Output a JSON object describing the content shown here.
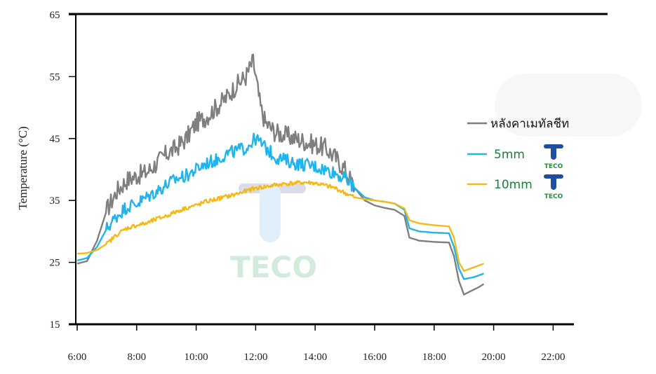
{
  "chart_data": {
    "type": "line",
    "title": "",
    "xlabel": "",
    "ylabel": "Temperature (°C)",
    "ylim": [
      15,
      65
    ],
    "yticks": [
      15,
      25,
      35,
      45,
      55,
      65
    ],
    "xlim": [
      "6:00",
      "23:00"
    ],
    "xticks": [
      "6:00",
      "8:00",
      "10:00",
      "12:00",
      "14:00",
      "16:00",
      "18:00",
      "20:00",
      "22:00"
    ],
    "legend_position": "right",
    "grid": false,
    "series": [
      {
        "name": "หลังคาเมทัลชีท",
        "color": "#7f7f7f",
        "points": [
          [
            "6:00",
            24.8
          ],
          [
            "6:20",
            25.2
          ],
          [
            "6:40",
            28.5
          ],
          [
            "7:00",
            33.5
          ],
          [
            "7:20",
            36.5
          ],
          [
            "7:40",
            38.3
          ],
          [
            "8:00",
            39.0
          ],
          [
            "8:20",
            39.5
          ],
          [
            "8:40",
            41.0
          ],
          [
            "9:00",
            42.5
          ],
          [
            "9:20",
            43.5
          ],
          [
            "9:40",
            45.0
          ],
          [
            "10:00",
            47.5
          ],
          [
            "10:20",
            48.5
          ],
          [
            "10:40",
            50.0
          ],
          [
            "11:00",
            51.5
          ],
          [
            "11:20",
            53.5
          ],
          [
            "11:40",
            55.0
          ],
          [
            "11:55",
            57.5
          ],
          [
            "12:10",
            50.0
          ],
          [
            "12:20",
            47.5
          ],
          [
            "12:40",
            46.0
          ],
          [
            "13:00",
            45.5
          ],
          [
            "13:20",
            45.0
          ],
          [
            "13:40",
            44.5
          ],
          [
            "14:00",
            44.0
          ],
          [
            "14:20",
            43.5
          ],
          [
            "14:40",
            42.0
          ],
          [
            "15:00",
            40.0
          ],
          [
            "15:20",
            37.0
          ],
          [
            "15:40",
            35.0
          ],
          [
            "16:00",
            34.2
          ],
          [
            "16:20",
            33.8
          ],
          [
            "16:40",
            33.5
          ],
          [
            "17:00",
            32.5
          ],
          [
            "17:10",
            29.0
          ],
          [
            "17:30",
            28.5
          ],
          [
            "18:00",
            28.3
          ],
          [
            "18:30",
            28.2
          ],
          [
            "18:40",
            26.0
          ],
          [
            "18:50",
            22.0
          ],
          [
            "19:00",
            19.8
          ],
          [
            "19:10",
            20.2
          ],
          [
            "19:30",
            21.0
          ],
          [
            "19:40",
            21.5
          ]
        ]
      },
      {
        "name": "5mm",
        "color": "#1fb4ec",
        "points": [
          [
            "6:00",
            25.3
          ],
          [
            "6:20",
            25.7
          ],
          [
            "6:40",
            27.5
          ],
          [
            "7:00",
            30.5
          ],
          [
            "7:20",
            32.5
          ],
          [
            "7:40",
            34.0
          ],
          [
            "8:00",
            34.5
          ],
          [
            "8:20",
            35.5
          ],
          [
            "8:40",
            36.5
          ],
          [
            "9:00",
            37.5
          ],
          [
            "9:20",
            38.5
          ],
          [
            "9:40",
            39.0
          ],
          [
            "10:00",
            40.0
          ],
          [
            "10:20",
            41.0
          ],
          [
            "10:40",
            41.5
          ],
          [
            "11:00",
            42.5
          ],
          [
            "11:20",
            43.0
          ],
          [
            "11:40",
            43.5
          ],
          [
            "12:00",
            45.0
          ],
          [
            "12:20",
            43.5
          ],
          [
            "12:40",
            42.0
          ],
          [
            "13:00",
            41.5
          ],
          [
            "13:20",
            41.0
          ],
          [
            "13:40",
            40.8
          ],
          [
            "14:00",
            40.5
          ],
          [
            "14:20",
            40.0
          ],
          [
            "14:40",
            39.5
          ],
          [
            "15:00",
            38.5
          ],
          [
            "15:20",
            37.0
          ],
          [
            "15:40",
            35.5
          ],
          [
            "16:00",
            35.0
          ],
          [
            "16:20",
            34.8
          ],
          [
            "16:40",
            34.5
          ],
          [
            "17:00",
            33.5
          ],
          [
            "17:10",
            30.5
          ],
          [
            "17:30",
            30.0
          ],
          [
            "18:00",
            29.8
          ],
          [
            "18:30",
            29.7
          ],
          [
            "18:40",
            27.5
          ],
          [
            "18:50",
            24.0
          ],
          [
            "19:00",
            22.3
          ],
          [
            "19:20",
            22.6
          ],
          [
            "19:40",
            23.2
          ]
        ]
      },
      {
        "name": "10mm",
        "color": "#f5b915",
        "points": [
          [
            "6:00",
            26.4
          ],
          [
            "6:20",
            26.5
          ],
          [
            "6:40",
            27.0
          ],
          [
            "7:00",
            28.0
          ],
          [
            "7:20",
            29.5
          ],
          [
            "7:40",
            30.5
          ],
          [
            "8:00",
            31.0
          ],
          [
            "8:20",
            31.3
          ],
          [
            "8:40",
            32.0
          ],
          [
            "9:00",
            32.5
          ],
          [
            "9:20",
            33.2
          ],
          [
            "9:40",
            33.8
          ],
          [
            "10:00",
            34.2
          ],
          [
            "10:20",
            34.8
          ],
          [
            "10:40",
            35.2
          ],
          [
            "11:00",
            35.6
          ],
          [
            "11:20",
            36.0
          ],
          [
            "11:40",
            36.5
          ],
          [
            "12:00",
            37.0
          ],
          [
            "12:20",
            37.2
          ],
          [
            "12:40",
            37.5
          ],
          [
            "13:00",
            37.7
          ],
          [
            "13:20",
            37.8
          ],
          [
            "13:40",
            37.9
          ],
          [
            "14:00",
            37.8
          ],
          [
            "14:20",
            37.4
          ],
          [
            "14:40",
            37.0
          ],
          [
            "15:00",
            36.2
          ],
          [
            "15:20",
            35.5
          ],
          [
            "15:40",
            35.2
          ],
          [
            "16:00",
            35.0
          ],
          [
            "16:20",
            34.8
          ],
          [
            "16:40",
            34.5
          ],
          [
            "17:00",
            33.7
          ],
          [
            "17:10",
            31.8
          ],
          [
            "17:30",
            31.3
          ],
          [
            "18:00",
            31.0
          ],
          [
            "18:30",
            30.8
          ],
          [
            "18:40",
            29.0
          ],
          [
            "18:50",
            25.0
          ],
          [
            "19:00",
            23.6
          ],
          [
            "19:20",
            24.2
          ],
          [
            "19:40",
            24.8
          ]
        ]
      }
    ]
  },
  "watermark": {
    "text": "TECO"
  },
  "legend_logos": {
    "text": "TECO"
  }
}
